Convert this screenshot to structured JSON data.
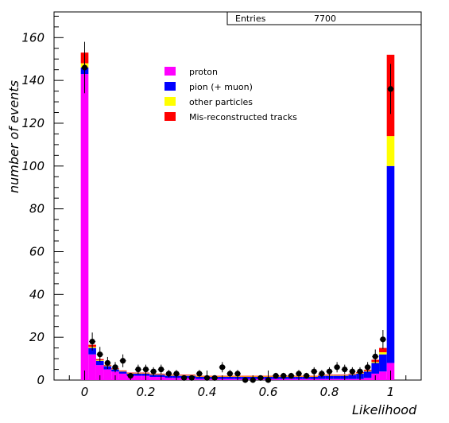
{
  "chart_data": {
    "type": "bar",
    "stacked": true,
    "title": "",
    "xlabel": "Likelihood",
    "ylabel": "number of events",
    "xlim": [
      -0.1,
      1.1
    ],
    "ylim": [
      0,
      172
    ],
    "x_ticks": [
      "0",
      "0.2",
      "0.4",
      "0.6",
      "0.8",
      "1"
    ],
    "x_tick_values": [
      0,
      0.2,
      0.4,
      0.6,
      0.8,
      1.0
    ],
    "y_ticks": [
      "0",
      "20",
      "40",
      "60",
      "80",
      "100",
      "120",
      "140",
      "160"
    ],
    "y_tick_values": [
      0,
      20,
      40,
      60,
      80,
      100,
      120,
      140,
      160
    ],
    "stats_box": {
      "label": "Entries",
      "value": "7700"
    },
    "legend_position": "top-center",
    "bin_width": 0.025,
    "bin_centers": [
      0.0,
      0.025,
      0.05,
      0.075,
      0.1,
      0.125,
      0.15,
      0.175,
      0.2,
      0.225,
      0.25,
      0.275,
      0.3,
      0.325,
      0.35,
      0.375,
      0.4,
      0.425,
      0.45,
      0.475,
      0.5,
      0.525,
      0.55,
      0.575,
      0.6,
      0.625,
      0.65,
      0.675,
      0.7,
      0.725,
      0.75,
      0.775,
      0.8,
      0.825,
      0.85,
      0.875,
      0.9,
      0.925,
      0.95,
      0.975,
      1.0
    ],
    "series": [
      {
        "name": "proton",
        "color": "#ff00ff",
        "values": [
          143,
          12,
          7,
          5,
          4,
          3,
          2,
          2,
          2,
          1.5,
          1.5,
          1,
          1,
          1,
          1,
          0.5,
          0.5,
          0.5,
          0.5,
          0.5,
          0.5,
          0.5,
          0.5,
          0.5,
          0.5,
          0.5,
          0.5,
          0.5,
          0.5,
          0.5,
          0.5,
          0.5,
          0.5,
          0.5,
          0.5,
          0.5,
          0.5,
          1,
          3,
          4,
          8
        ]
      },
      {
        "name": "pion (+ muon)",
        "color": "#0000ff",
        "values": [
          3,
          3,
          2,
          1.5,
          1,
          1,
          1,
          1,
          1,
          1,
          1,
          1,
          1,
          1,
          1,
          1,
          1,
          1,
          1,
          1,
          1,
          1,
          1,
          1,
          1,
          1,
          1,
          1,
          1,
          1,
          1,
          1.5,
          1.5,
          1.5,
          1.5,
          2,
          2.5,
          3,
          5,
          8,
          92
        ]
      },
      {
        "name": "other particles",
        "color": "#ffff00",
        "values": [
          2,
          0.5,
          0.3,
          0.3,
          0.2,
          0.2,
          0.2,
          0.2,
          0.2,
          0.2,
          0.2,
          0.2,
          0.2,
          0.2,
          0.2,
          0.2,
          0.2,
          0.2,
          0.2,
          0.2,
          0.2,
          0.2,
          0.2,
          0.2,
          0.2,
          0.2,
          0.2,
          0.2,
          0.2,
          0.2,
          0.2,
          0.2,
          0.2,
          0.2,
          0.2,
          0.2,
          0.3,
          0.3,
          0.5,
          1,
          14
        ]
      },
      {
        "name": "Mis-reconstructed tracks",
        "color": "#ff0000",
        "values": [
          5,
          1,
          0.5,
          0.3,
          0.3,
          0.3,
          0.3,
          0.3,
          0.3,
          0.3,
          0.3,
          0.3,
          0.3,
          0.3,
          0.3,
          0.3,
          0.3,
          0.3,
          0.3,
          0.3,
          0.3,
          0.3,
          0.3,
          0.3,
          0.3,
          0.3,
          0.3,
          0.3,
          0.3,
          0.3,
          0.3,
          0.3,
          0.3,
          0.3,
          0.3,
          0.3,
          0.4,
          0.5,
          1,
          2,
          38
        ]
      }
    ],
    "data_points": {
      "name": "data",
      "x": [
        0.0,
        0.025,
        0.05,
        0.075,
        0.1,
        0.125,
        0.15,
        0.175,
        0.2,
        0.225,
        0.25,
        0.275,
        0.3,
        0.325,
        0.35,
        0.375,
        0.4,
        0.425,
        0.45,
        0.475,
        0.5,
        0.525,
        0.55,
        0.575,
        0.6,
        0.625,
        0.65,
        0.675,
        0.7,
        0.725,
        0.75,
        0.775,
        0.8,
        0.825,
        0.85,
        0.875,
        0.9,
        0.925,
        0.95,
        0.975,
        1.0
      ],
      "y": [
        146,
        18,
        12,
        8,
        6,
        9,
        2,
        5,
        5,
        4,
        5,
        3,
        3,
        1,
        1,
        3,
        1,
        1,
        6,
        3,
        3,
        0,
        0,
        1,
        0,
        2,
        2,
        2,
        3,
        2,
        4,
        3,
        4,
        6,
        5,
        4,
        4,
        6,
        11,
        19,
        136
      ],
      "yerr": [
        12,
        4.2,
        3.5,
        2.8,
        2.4,
        3,
        1.4,
        2.2,
        2.2,
        2,
        2.2,
        1.7,
        1.7,
        1,
        1,
        1.7,
        1,
        1,
        2.4,
        1.7,
        1.7,
        0,
        0,
        1,
        0,
        1.4,
        1.4,
        1.4,
        1.7,
        1.4,
        2,
        1.7,
        2,
        2.4,
        2.2,
        2,
        2,
        2.4,
        3.3,
        4.4,
        11.7
      ]
    }
  }
}
